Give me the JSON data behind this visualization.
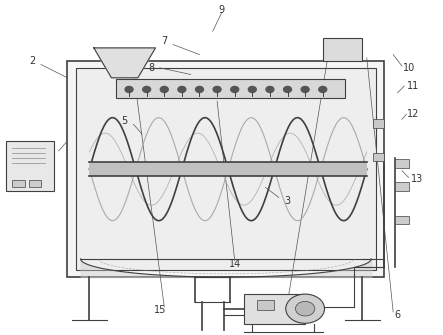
{
  "bg_color": "#ffffff",
  "line_color": "#404040",
  "label_color": "#333333",
  "fig_width": 4.43,
  "fig_height": 3.35,
  "dpi": 100
}
